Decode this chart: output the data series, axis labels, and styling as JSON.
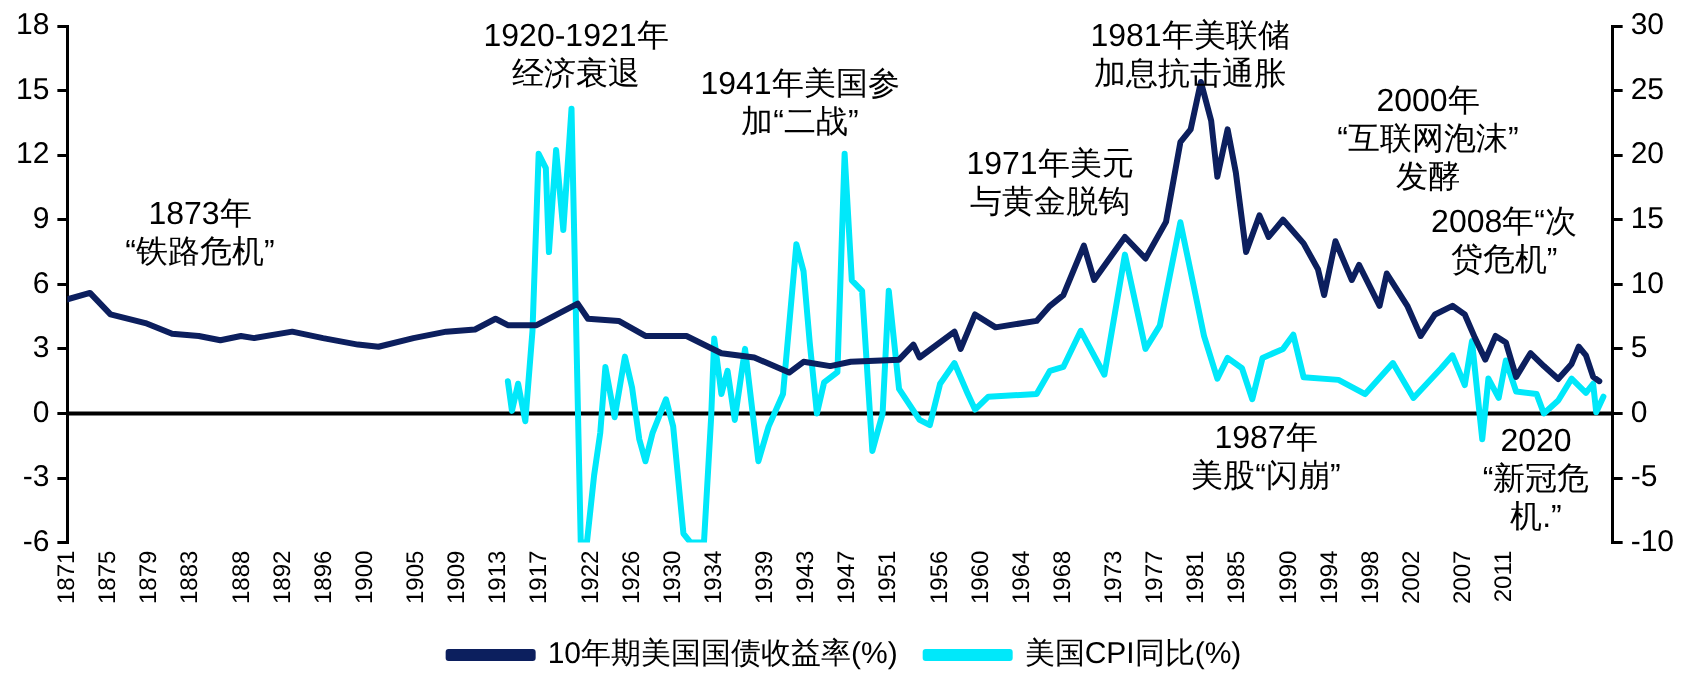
{
  "chart_data": {
    "type": "line",
    "marker": "none",
    "line_style": "solid",
    "legend": "bottom",
    "xlim": [
      1871,
      2021.5
    ],
    "xticks": [
      1871,
      1875,
      1879,
      1883,
      1888,
      1892,
      1896,
      1900,
      1905,
      1909,
      1913,
      1917,
      1922,
      1926,
      1930,
      1934,
      1939,
      1943,
      1947,
      1951,
      1956,
      1960,
      1964,
      1968,
      1973,
      1977,
      1981,
      1985,
      1990,
      1994,
      1998,
      2002,
      2007,
      2011
    ],
    "ylim": [
      -6,
      18
    ],
    "yticks": [
      -6,
      -3,
      0,
      3,
      6,
      9,
      12,
      15,
      18
    ],
    "y2lim": [
      -10,
      30
    ],
    "y2ticks": [
      -10,
      -5,
      0,
      5,
      10,
      15,
      20,
      25,
      30
    ],
    "ref_lines": [
      {
        "axis": "y",
        "value": 0,
        "color": "#000000"
      }
    ],
    "series": [
      {
        "name": "10年期美国国债收益率(%)",
        "color": "#0c1f5e",
        "x": [
          1871,
          1873.2,
          1875.2,
          1878.6,
          1881.2,
          1883.8,
          1885.9,
          1887.9,
          1889.2,
          1892.9,
          1895.9,
          1899.3,
          1901.3,
          1904.7,
          1907.9,
          1910.7,
          1912.7,
          1913.9,
          1916.7,
          1918.7,
          1920.7,
          1921.7,
          1924.7,
          1927.3,
          1931.3,
          1934.7,
          1937.9,
          1941.3,
          1942.7,
          1945.3,
          1947.3,
          1952.0,
          1953.4,
          1954,
          1957.4,
          1958,
          1959.4,
          1961.4,
          1965.4,
          1966.7,
          1968,
          1970,
          1971,
          1974,
          1976,
          1978,
          1979.4,
          1980.4,
          1981.4,
          1982.4,
          1983,
          1984,
          1984.8,
          1985.8,
          1987.1,
          1988,
          1989.4,
          1991.4,
          1992.8,
          1993.4,
          1994.5,
          1996.1,
          1996.8,
          1998.8,
          1999.5,
          2001.5,
          2002.8,
          2004.2,
          2005.9,
          2007.1,
          2008.1,
          2009.1,
          2010.1,
          2011.1,
          2012.1,
          2013.5,
          2014.8,
          2016.2,
          2017.5,
          2018.2,
          2018.9,
          2019.6,
          2020.2
        ],
        "values": [
          5.3,
          5.6,
          4.6,
          4.2,
          3.7,
          3.6,
          3.4,
          3.6,
          3.5,
          3.8,
          3.5,
          3.2,
          3.1,
          3.5,
          3.8,
          3.9,
          4.4,
          4.1,
          4.1,
          4.6,
          5.1,
          4.4,
          4.3,
          3.6,
          3.6,
          2.8,
          2.6,
          1.9,
          2.4,
          2.2,
          2.4,
          2.5,
          3.2,
          2.6,
          3.8,
          3.0,
          4.6,
          4.0,
          4.3,
          5.0,
          5.5,
          7.8,
          6.2,
          8.2,
          7.2,
          8.9,
          12.6,
          13.2,
          15.4,
          13.6,
          11.0,
          13.2,
          11.2,
          7.5,
          9.2,
          8.2,
          9.0,
          7.9,
          6.7,
          5.5,
          8.0,
          6.2,
          6.9,
          5.0,
          6.5,
          5.0,
          3.6,
          4.6,
          5.0,
          4.6,
          3.5,
          2.5,
          3.6,
          3.3,
          1.7,
          2.8,
          2.2,
          1.6,
          2.3,
          3.1,
          2.7,
          1.7,
          1.5
        ]
      },
      {
        "name": "美国CPI同比(%)",
        "color": "#00e8fa",
        "axis": "y2",
        "x": [
          1913.9,
          1914.3,
          1914.9,
          1915.6,
          1916.3,
          1916.9,
          1917.6,
          1917.9,
          1918.6,
          1919.3,
          1920.1,
          1921,
          1921.6,
          1922.3,
          1922.9,
          1923.4,
          1924.3,
          1925.3,
          1926,
          1926.7,
          1927.3,
          1928,
          1929.3,
          1930,
          1931,
          1931.7,
          1933,
          1933.7,
          1934,
          1934.7,
          1935.3,
          1936,
          1937,
          1938.3,
          1939.3,
          1940.7,
          1942,
          1942.7,
          1943.3,
          1944,
          1944.7,
          1946,
          1946.7,
          1947.4,
          1948.4,
          1949.4,
          1950.4,
          1951,
          1952,
          1954,
          1955,
          1956,
          1957.4,
          1958.7,
          1959.4,
          1960.7,
          1965.4,
          1966.7,
          1968,
          1969.7,
          1972,
          1974,
          1976,
          1977.4,
          1979.4,
          1980.4,
          1981.7,
          1983,
          1984,
          1985.4,
          1986.4,
          1987.4,
          1989.4,
          1990.4,
          1991.4,
          1994.8,
          1997.4,
          2000.1,
          2002.1,
          2004.8,
          2005.9,
          2007.1,
          2007.8,
          2008.8,
          2009.4,
          2010.4,
          2011.1,
          2012.1,
          2014.1,
          2014.8,
          2016.2,
          2017.5,
          2018.9,
          2019.6,
          2019.9,
          2020.6
        ],
        "values": [
          2.5,
          0.2,
          2.3,
          -0.6,
          6.4,
          20.1,
          19,
          12.5,
          20.4,
          14.2,
          23.6,
          -10,
          -10,
          -4.8,
          -1.5,
          3.6,
          -0.3,
          4.4,
          2.0,
          -2,
          -3.7,
          -1.5,
          1.1,
          -1,
          -9.3,
          -10,
          -10,
          -0.3,
          5.8,
          1.5,
          3.3,
          -0.5,
          5,
          -3.7,
          -1,
          1.5,
          13.1,
          11,
          5.5,
          0,
          2.4,
          3.2,
          20.1,
          10.3,
          9.5,
          -2.9,
          0,
          9.5,
          1.9,
          -0.5,
          -0.9,
          2.3,
          3.9,
          1.5,
          0.3,
          1.3,
          1.5,
          3.3,
          3.6,
          6.4,
          3.0,
          12.3,
          5,
          6.8,
          14.8,
          11,
          6.0,
          2.7,
          4.3,
          3.5,
          1.1,
          4.3,
          5.0,
          6.1,
          2.8,
          2.6,
          1.5,
          3.9,
          1.2,
          3.5,
          4.5,
          2.2,
          5.6,
          -2,
          2.7,
          1.2,
          4.1,
          1.7,
          1.5,
          0,
          1.0,
          2.7,
          1.6,
          2.3,
          0.1,
          1.3
        ]
      }
    ],
    "annotations": [
      "1873年“铁路危机”",
      "1920-1921年经济衰退",
      "1941年美国参加“二战”",
      "1971年美元与黄金脱钩",
      "1981年美联储加息抗击通胀",
      "2000年“互联网泡沫”发酵",
      "2008年“次贷危机”",
      "1987年美股“闪崩”",
      "2020“新冠危机.”"
    ]
  }
}
